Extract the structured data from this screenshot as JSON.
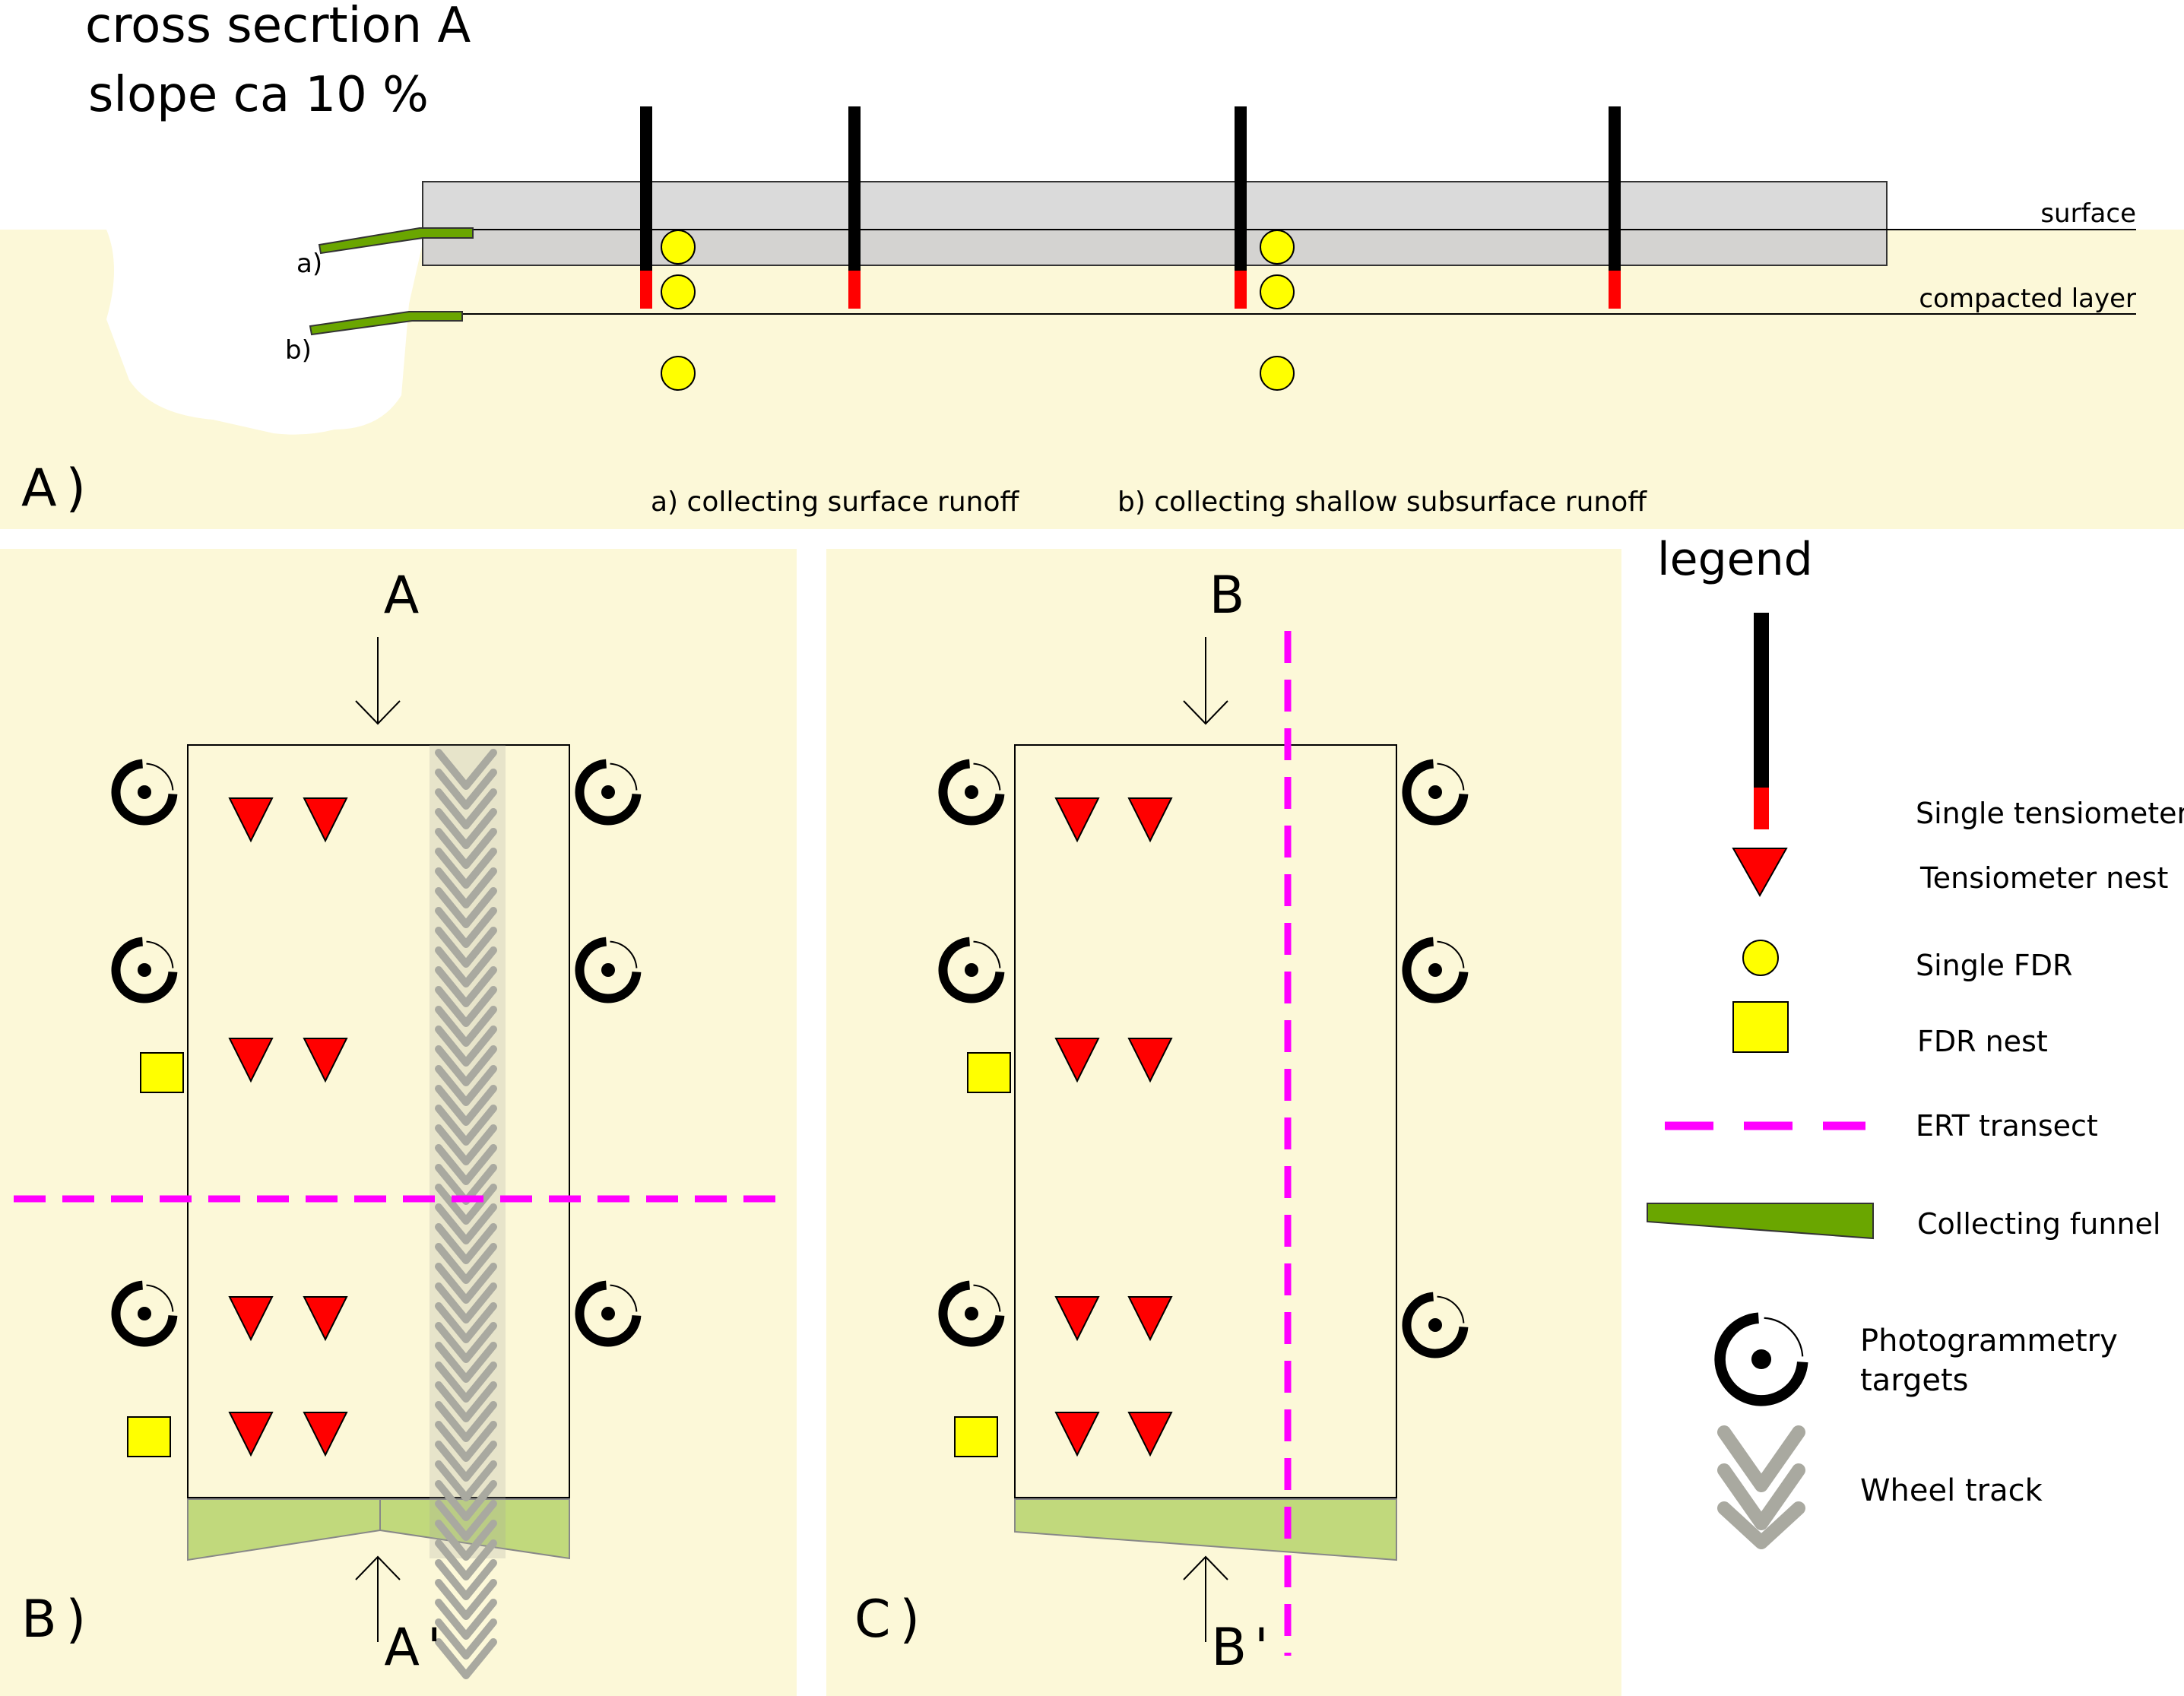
{
  "colors": {
    "soil": "#fcf8d8",
    "topsoil": "#d4d1c3",
    "slab": "#d3d3d3",
    "tensiometer_cup": "#ff0000",
    "fdr": "#ffff00",
    "ert": "#ff00ff",
    "funnel": "#6aa600",
    "funnel_plan": "#c1d97c",
    "wheel_track": "#a9a9a0"
  },
  "panel_a": {
    "title_line1": "cross secrtion A",
    "title_line2": "slope ca 10 %",
    "surface_label": "surface",
    "compacted_label": "compacted layer",
    "funnel_a_label": "a)",
    "funnel_b_label": "b)",
    "panel_label": "A)",
    "note_a": "a) collecting surface runoff",
    "note_b": "b) collecting shallow subsurface runoff"
  },
  "panel_b": {
    "panel_label": "B)",
    "section_top": "A",
    "section_bottom": "A'"
  },
  "panel_c": {
    "panel_label": "C)",
    "section_top": "B",
    "section_bottom": "B'"
  },
  "legend": {
    "title": "legend",
    "items": [
      {
        "icon": "tensiometer-icon",
        "label": "Single tensiometer"
      },
      {
        "icon": "tensiometer-nest-icon",
        "label": "Tensiometer nest"
      },
      {
        "icon": "fdr-icon",
        "label": "Single FDR"
      },
      {
        "icon": "fdr-nest-icon",
        "label": "FDR nest"
      },
      {
        "icon": "ert-line-icon",
        "label": "ERT transect"
      },
      {
        "icon": "funnel-icon",
        "label": "Collecting funnel"
      },
      {
        "icon": "photogrammetry-target-icon",
        "label_line1": "Photogrammetry",
        "label_line2": "targets"
      },
      {
        "icon": "wheel-track-icon",
        "label": "Wheel track"
      }
    ]
  }
}
